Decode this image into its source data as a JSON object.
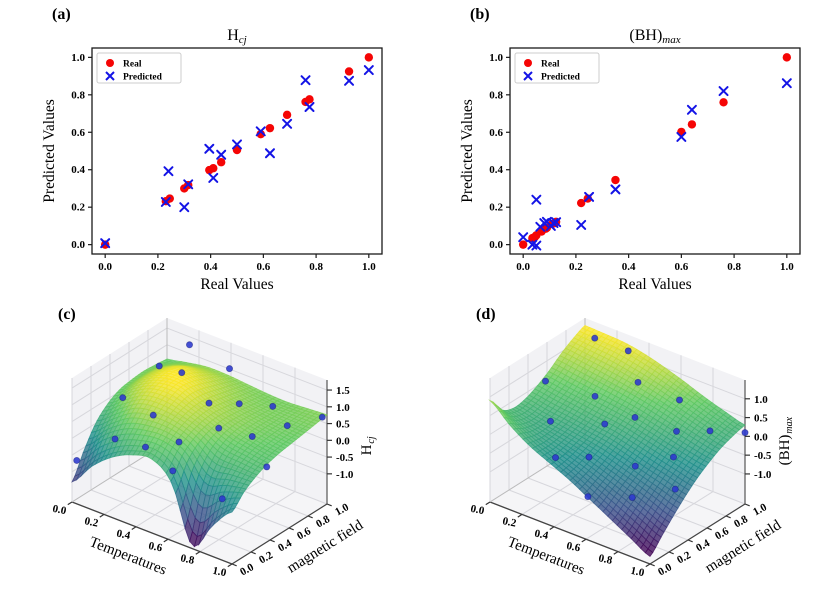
{
  "figure": {
    "background": "#ffffff"
  },
  "chart_data": [
    {
      "panel_label": "(a)",
      "type": "scatter",
      "title_base": "H",
      "title_sub": "cj",
      "xlabel": "Real Values",
      "ylabel": "Predicted Values",
      "xlim": [
        -0.05,
        1.05
      ],
      "ylim": [
        -0.05,
        1.05
      ],
      "xticks": [
        "0.0",
        "0.2",
        "0.4",
        "0.6",
        "0.8",
        "1.0"
      ],
      "yticks": [
        "0.0",
        "0.2",
        "0.4",
        "0.6",
        "0.8",
        "1.0"
      ],
      "legend_position": "upper-left",
      "series": [
        {
          "name": "Real",
          "marker": "circle",
          "color": "#f50505",
          "points": [
            [
              0.0,
              0.0
            ],
            [
              0.23,
              0.232
            ],
            [
              0.245,
              0.246
            ],
            [
              0.3,
              0.3
            ],
            [
              0.315,
              0.318
            ],
            [
              0.395,
              0.398
            ],
            [
              0.41,
              0.408
            ],
            [
              0.44,
              0.44
            ],
            [
              0.5,
              0.505
            ],
            [
              0.59,
              0.59
            ],
            [
              0.625,
              0.622
            ],
            [
              0.69,
              0.693
            ],
            [
              0.76,
              0.762
            ],
            [
              0.775,
              0.776
            ],
            [
              0.925,
              0.925
            ],
            [
              1.0,
              1.0
            ]
          ]
        },
        {
          "name": "Predicted",
          "marker": "x",
          "color": "#1414e6",
          "points": [
            [
              0.0,
              0.008
            ],
            [
              0.23,
              0.228
            ],
            [
              0.24,
              0.392
            ],
            [
              0.3,
              0.2
            ],
            [
              0.315,
              0.322
            ],
            [
              0.395,
              0.512
            ],
            [
              0.41,
              0.356
            ],
            [
              0.44,
              0.48
            ],
            [
              0.5,
              0.535
            ],
            [
              0.59,
              0.605
            ],
            [
              0.625,
              0.488
            ],
            [
              0.69,
              0.645
            ],
            [
              0.76,
              0.878
            ],
            [
              0.775,
              0.735
            ],
            [
              0.925,
              0.875
            ],
            [
              1.0,
              0.932
            ]
          ]
        }
      ]
    },
    {
      "panel_label": "(b)",
      "type": "scatter",
      "title_base": "(BH)",
      "title_sub": "max",
      "xlabel": "Real Values",
      "ylabel": "Predicted Values",
      "xlim": [
        -0.05,
        1.05
      ],
      "ylim": [
        -0.05,
        1.05
      ],
      "xticks": [
        "0.0",
        "0.2",
        "0.4",
        "0.6",
        "0.8",
        "1.0"
      ],
      "yticks": [
        "0.0",
        "0.2",
        "0.4",
        "0.6",
        "0.8",
        "1.0"
      ],
      "legend_position": "upper-left",
      "series": [
        {
          "name": "Real",
          "marker": "circle",
          "color": "#f50505",
          "points": [
            [
              0.0,
              0.0
            ],
            [
              0.035,
              0.035
            ],
            [
              0.045,
              0.042
            ],
            [
              0.05,
              0.05
            ],
            [
              0.07,
              0.07
            ],
            [
              0.085,
              0.085
            ],
            [
              0.09,
              0.09
            ],
            [
              0.11,
              0.11
            ],
            [
              0.12,
              0.115
            ],
            [
              0.125,
              0.122
            ],
            [
              0.22,
              0.222
            ],
            [
              0.245,
              0.246
            ],
            [
              0.35,
              0.345
            ],
            [
              0.6,
              0.602
            ],
            [
              0.64,
              0.642
            ],
            [
              0.76,
              0.76
            ],
            [
              1.0,
              1.0
            ]
          ]
        },
        {
          "name": "Predicted",
          "marker": "x",
          "color": "#1414e6",
          "points": [
            [
              0.0,
              0.04
            ],
            [
              0.035,
              0.0
            ],
            [
              0.05,
              -0.005
            ],
            [
              0.05,
              0.24
            ],
            [
              0.065,
              0.095
            ],
            [
              0.08,
              0.115
            ],
            [
              0.09,
              0.122
            ],
            [
              0.105,
              0.1
            ],
            [
              0.115,
              0.115
            ],
            [
              0.125,
              0.12
            ],
            [
              0.22,
              0.105
            ],
            [
              0.25,
              0.255
            ],
            [
              0.35,
              0.295
            ],
            [
              0.6,
              0.575
            ],
            [
              0.64,
              0.72
            ],
            [
              0.76,
              0.82
            ],
            [
              1.0,
              0.862
            ]
          ]
        }
      ]
    },
    {
      "panel_label": "(c)",
      "type": "surface3d",
      "xlabel": "Temperatures",
      "ylabel": "magnetic field",
      "zlabel_base": "H",
      "zlabel_sub": "cj",
      "xticks": [
        "0.0",
        "0.2",
        "0.4",
        "0.6",
        "0.8",
        "1.0"
      ],
      "yticks": [
        "0.0",
        "0.2",
        "0.4",
        "0.6",
        "0.8",
        "1.0"
      ],
      "zticks": [
        "1.5",
        "1.0",
        "0.5",
        "0.0",
        "-0.5",
        "-1.0"
      ],
      "zlim": [
        -1.9,
        1.8
      ],
      "colormap": "viridis",
      "surface_alpha": 0.8,
      "point_color": "#2b38cf",
      "surface_grid": [
        [
          -1.3,
          -0.6,
          0.0,
          0.35,
          0.55,
          0.62,
          0.65,
          0.62,
          0.58
        ],
        [
          -0.6,
          0.0,
          0.45,
          0.8,
          1.0,
          1.05,
          1.0,
          0.85,
          0.7
        ],
        [
          -0.1,
          0.4,
          0.85,
          1.15,
          1.3,
          1.35,
          1.25,
          1.0,
          0.8
        ],
        [
          0.2,
          0.6,
          0.95,
          1.2,
          1.35,
          1.3,
          1.15,
          0.98,
          0.8
        ],
        [
          0.3,
          0.65,
          0.9,
          1.05,
          1.1,
          1.05,
          0.95,
          0.85,
          0.75
        ],
        [
          -0.2,
          0.4,
          0.7,
          0.85,
          0.9,
          0.86,
          0.8,
          0.74,
          0.7
        ],
        [
          -1.8,
          -0.4,
          0.3,
          0.6,
          0.72,
          0.74,
          0.72,
          0.7,
          0.68
        ],
        [
          -1.0,
          -0.15,
          0.28,
          0.5,
          0.6,
          0.65,
          0.67,
          0.7,
          0.72
        ],
        [
          -0.35,
          0.02,
          0.26,
          0.42,
          0.52,
          0.58,
          0.64,
          0.7,
          0.76
        ]
      ],
      "scatter_points": [
        [
          0.0,
          0.05,
          -0.75
        ],
        [
          0.05,
          0.45,
          0.5
        ],
        [
          0.1,
          0.75,
          1.0
        ],
        [
          0.2,
          0.9,
          1.55
        ],
        [
          0.3,
          0.65,
          1.35
        ],
        [
          0.45,
          0.9,
          1.3
        ],
        [
          0.3,
          0.35,
          0.62
        ],
        [
          0.5,
          0.6,
          0.9
        ],
        [
          0.55,
          0.2,
          0.55
        ],
        [
          0.6,
          0.75,
          0.8
        ],
        [
          0.65,
          0.45,
          0.7
        ],
        [
          0.6,
          0.05,
          0.05
        ],
        [
          0.75,
          0.85,
          0.82
        ],
        [
          0.8,
          0.55,
          0.55
        ],
        [
          0.85,
          0.15,
          -0.5
        ],
        [
          0.9,
          0.75,
          0.7
        ],
        [
          0.95,
          0.45,
          0.1
        ],
        [
          1.0,
          0.95,
          0.78
        ],
        [
          0.15,
          0.2,
          -0.1
        ],
        [
          0.4,
          0.1,
          0.3
        ]
      ]
    },
    {
      "panel_label": "(d)",
      "type": "surface3d",
      "xlabel": "Temperatures",
      "ylabel": "magnetic field",
      "zlabel_base": "(BH)",
      "zlabel_sub": "max",
      "xticks": [
        "0.0",
        "0.2",
        "0.4",
        "0.6",
        "0.8",
        "1.0"
      ],
      "yticks": [
        "0.0",
        "0.2",
        "0.4",
        "0.6",
        "0.8",
        "1.0"
      ],
      "zticks": [
        "1.0",
        "0.5",
        "0.0",
        "-0.5",
        "-1.0"
      ],
      "zlim": [
        -1.8,
        1.5
      ],
      "colormap": "viridis",
      "surface_alpha": 0.8,
      "point_color": "#2b38cf",
      "surface_grid": [
        [
          0.9,
          0.45,
          0.3,
          0.35,
          0.5,
          0.7,
          0.95,
          1.15,
          1.3
        ],
        [
          0.45,
          0.25,
          0.18,
          0.25,
          0.42,
          0.62,
          0.88,
          1.1,
          1.28
        ],
        [
          0.1,
          0.05,
          0.08,
          0.18,
          0.35,
          0.55,
          0.8,
          1.05,
          1.25
        ],
        [
          -0.15,
          -0.12,
          -0.02,
          0.1,
          0.27,
          0.48,
          0.72,
          0.95,
          1.15
        ],
        [
          -0.4,
          -0.3,
          -0.15,
          0.02,
          0.2,
          0.4,
          0.62,
          0.83,
          1.0
        ],
        [
          -0.7,
          -0.52,
          -0.32,
          -0.12,
          0.08,
          0.28,
          0.5,
          0.68,
          0.82
        ],
        [
          -1.0,
          -0.75,
          -0.5,
          -0.28,
          -0.05,
          0.15,
          0.36,
          0.52,
          0.62
        ],
        [
          -1.3,
          -1.0,
          -0.7,
          -0.42,
          -0.18,
          0.02,
          0.22,
          0.36,
          0.45
        ],
        [
          -1.6,
          -1.25,
          -0.9,
          -0.58,
          -0.3,
          -0.08,
          0.1,
          0.22,
          0.3
        ]
      ],
      "scatter_points": [
        [
          0.05,
          0.5,
          0.7
        ],
        [
          0.15,
          0.85,
          1.45
        ],
        [
          0.3,
          0.95,
          1.2
        ],
        [
          0.2,
          0.3,
          0.2
        ],
        [
          0.3,
          0.6,
          0.55
        ],
        [
          0.35,
          0.1,
          -0.2
        ],
        [
          0.45,
          0.8,
          0.85
        ],
        [
          0.45,
          0.45,
          0.3
        ],
        [
          0.5,
          0.2,
          -0.1
        ],
        [
          0.55,
          0.6,
          0.4
        ],
        [
          0.6,
          0.02,
          -0.7
        ],
        [
          0.65,
          0.9,
          0.55
        ],
        [
          0.7,
          0.35,
          -0.25
        ],
        [
          0.75,
          0.7,
          0.2
        ],
        [
          0.8,
          0.15,
          -0.6
        ],
        [
          0.85,
          0.5,
          0.0
        ],
        [
          0.9,
          0.8,
          0.3
        ],
        [
          1.0,
          1.0,
          0.1
        ],
        [
          0.95,
          0.35,
          -0.45
        ]
      ]
    }
  ]
}
